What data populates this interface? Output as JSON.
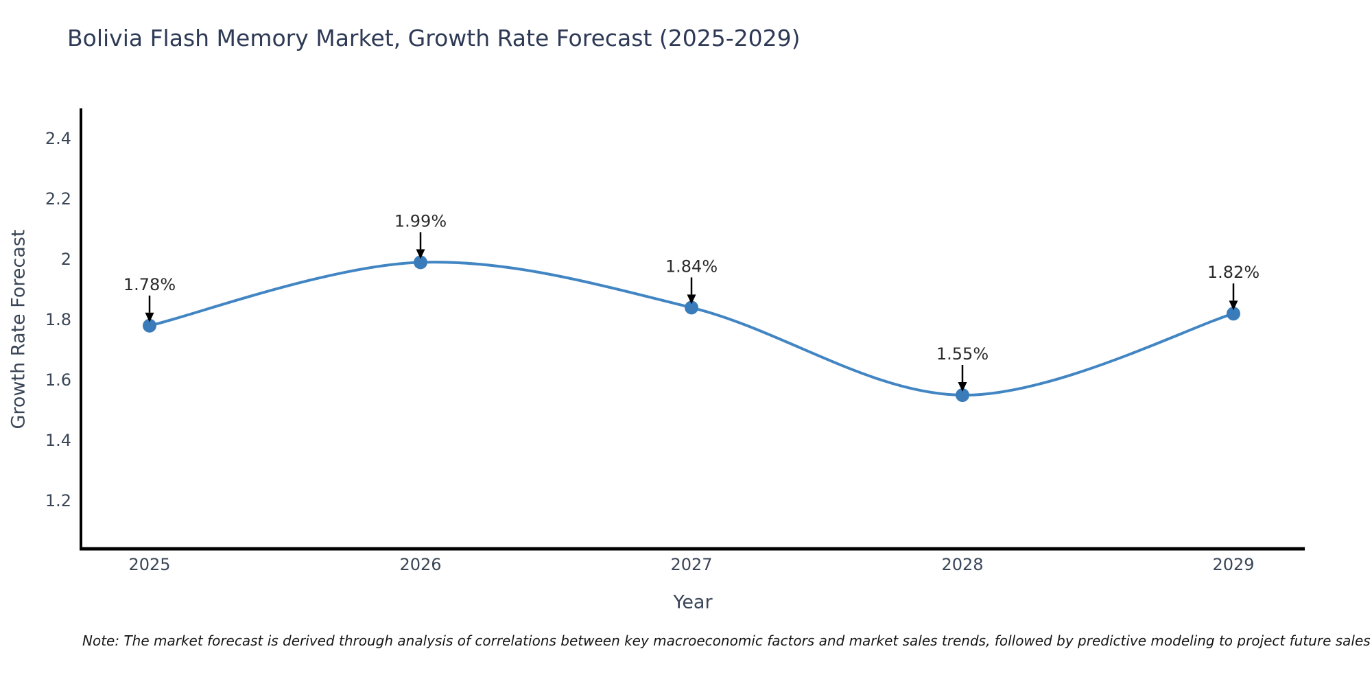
{
  "chart_data": {
    "type": "line",
    "title": "Bolivia Flash Memory Market, Growth Rate Forecast (2025-2029)",
    "xlabel": "Year",
    "ylabel": "Growth Rate Forecast",
    "x": [
      2025,
      2026,
      2027,
      2028,
      2029
    ],
    "series": [
      {
        "name": "Growth Rate Forecast",
        "values": [
          1.78,
          1.99,
          1.84,
          1.55,
          1.82
        ]
      }
    ],
    "point_labels": [
      "1.78%",
      "1.99%",
      "1.84%",
      "1.55%",
      "1.82%"
    ],
    "yticks": [
      2.4,
      2.2,
      2.0,
      1.8,
      1.6,
      1.4,
      1.2
    ],
    "ytick_labels": [
      "2.4",
      "2.2",
      "2",
      "1.8",
      "1.6",
      "1.4",
      "1.2"
    ],
    "xtick_labels": [
      "2025",
      "2026",
      "2027",
      "2028",
      "2029"
    ],
    "ylim": [
      1.05,
      2.5
    ],
    "xlim": [
      2024.75,
      2029.27
    ],
    "grid": false,
    "legend": "none",
    "line_color": "#4285c3",
    "marker_color": "#3a7cba",
    "annotation_arrow_color": "#000000",
    "axis_color": "#000000",
    "title_color": "#2e3a55",
    "axis_text_color": "#3a4657",
    "note": "Note: The market forecast is derived through analysis of correlations between key macroeconomic factors and market sales trends, followed by predictive modeling to project future sales"
  }
}
